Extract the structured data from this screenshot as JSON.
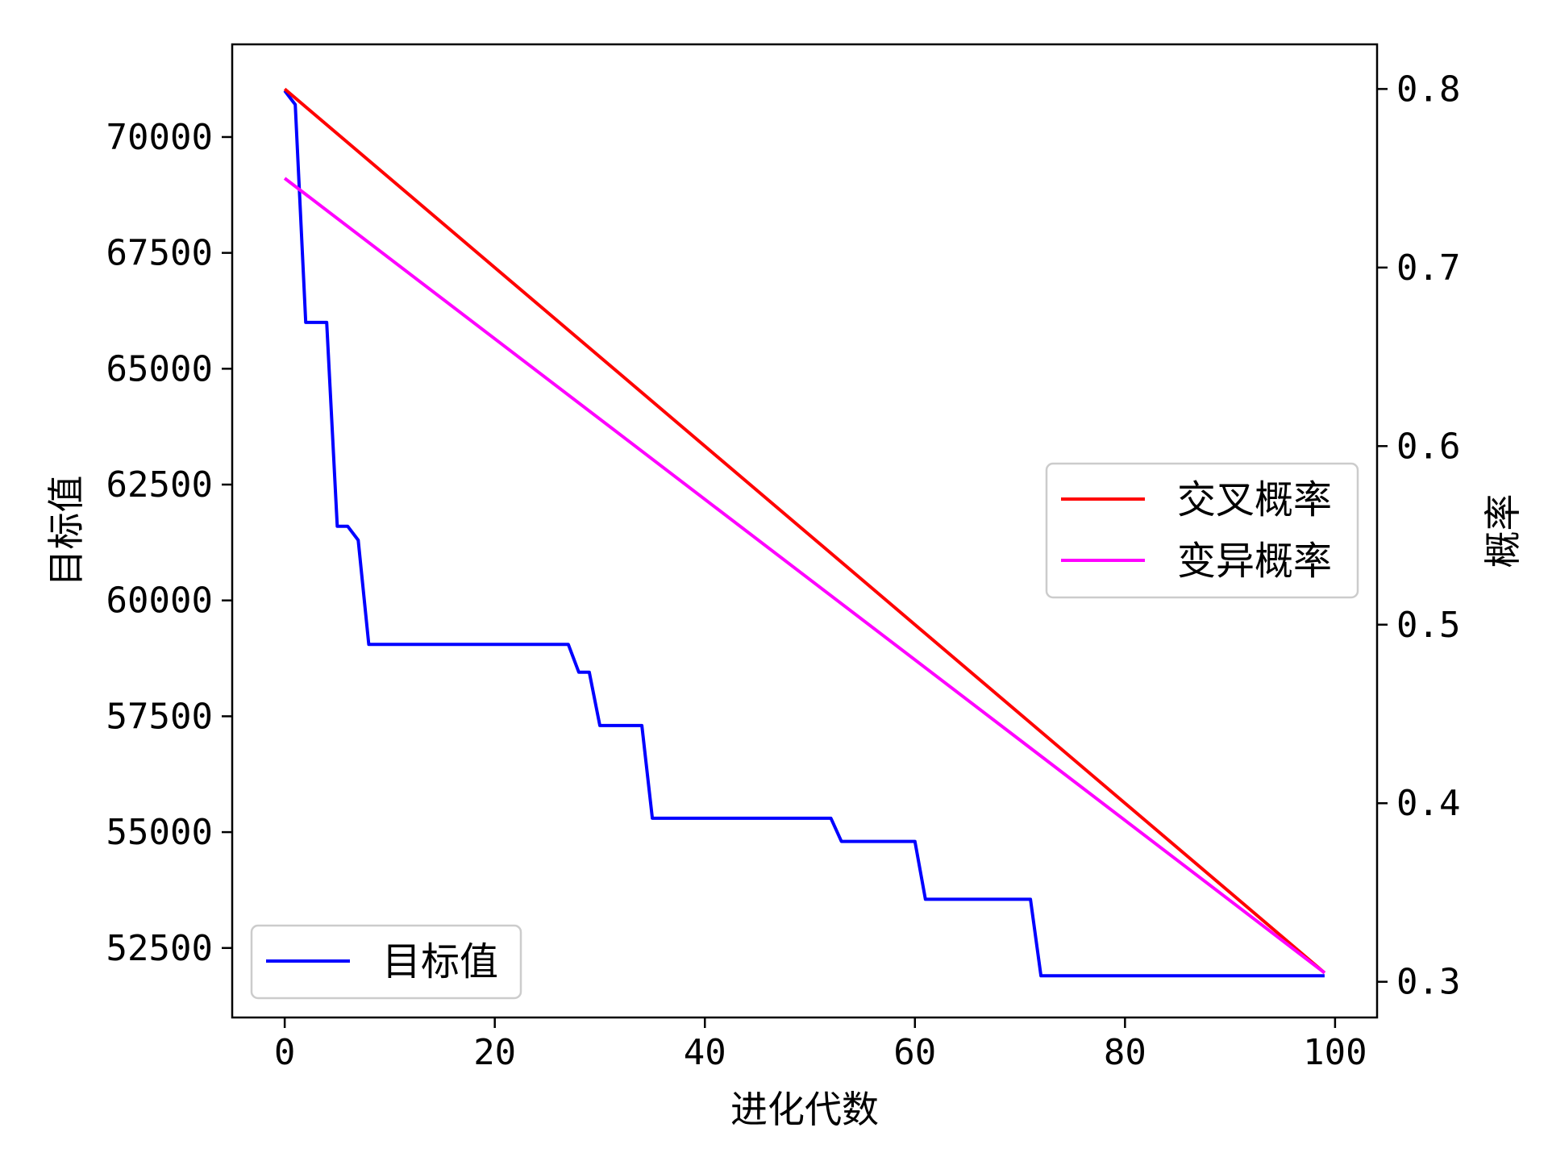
{
  "chart_data": {
    "type": "line",
    "xlabel": "进化代数",
    "ylabel_left": "目标值",
    "ylabel_right": "概率",
    "xlim": [
      -5,
      104
    ],
    "ylim_left": [
      51000,
      72000
    ],
    "ylim_right": [
      0.28,
      0.825
    ],
    "x_ticks": [
      0,
      20,
      40,
      60,
      80,
      100
    ],
    "y_left_ticks": [
      52500,
      55000,
      57500,
      60000,
      62500,
      65000,
      67500,
      70000
    ],
    "y_right_ticks": [
      0.3,
      0.4,
      0.5,
      0.6,
      0.7,
      0.8
    ],
    "series": [
      {
        "name": "目标值",
        "axis": "left",
        "color": "#0000ff",
        "x": [
          0,
          1,
          2,
          3,
          4,
          5,
          6,
          7,
          8,
          27,
          28,
          29,
          30,
          34,
          35,
          52,
          53,
          60,
          61,
          71,
          72,
          99
        ],
        "y": [
          71000,
          70700,
          66000,
          66000,
          66000,
          61600,
          61600,
          61300,
          59050,
          59050,
          58450,
          58450,
          57300,
          57300,
          55300,
          55300,
          54800,
          54800,
          53550,
          53550,
          51900,
          51900
        ]
      },
      {
        "name": "交叉概率",
        "axis": "right",
        "color": "#ff0000",
        "x": [
          0,
          99
        ],
        "y": [
          0.8,
          0.305
        ]
      },
      {
        "name": "变异概率",
        "axis": "right",
        "color": "#ff00ff",
        "x": [
          0,
          99
        ],
        "y": [
          0.75,
          0.305
        ]
      }
    ],
    "legends": [
      {
        "entries": [
          "交叉概率",
          "变异概率"
        ],
        "placement": "center-right"
      },
      {
        "entries": [
          "目标值"
        ],
        "placement": "lower-left"
      }
    ],
    "grid": false
  }
}
